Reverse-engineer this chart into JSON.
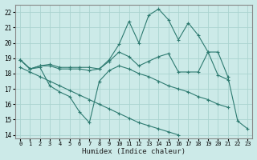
{
  "xlabel": "Humidex (Indice chaleur)",
  "background_color": "#cceae8",
  "grid_color": "#aad4d0",
  "line_color": "#2d7a70",
  "xlim": [
    -0.5,
    23.5
  ],
  "ylim": [
    13.8,
    22.5
  ],
  "yticks": [
    14,
    15,
    16,
    17,
    18,
    19,
    20,
    21,
    22
  ],
  "xticks": [
    0,
    1,
    2,
    3,
    4,
    5,
    6,
    7,
    8,
    9,
    10,
    11,
    12,
    13,
    14,
    15,
    16,
    17,
    18,
    19,
    20,
    21,
    22,
    23
  ],
  "lines": [
    {
      "x": [
        0,
        1,
        2,
        3,
        4,
        5,
        6,
        7,
        8,
        9,
        10,
        11,
        12,
        13,
        14,
        15,
        16,
        17,
        18,
        19,
        20,
        21
      ],
      "y": [
        18.9,
        18.3,
        18.5,
        18.5,
        18.3,
        18.3,
        18.3,
        18.2,
        18.3,
        18.8,
        19.4,
        19.1,
        18.5,
        18.8,
        19.1,
        19.3,
        18.1,
        18.1,
        18.1,
        19.4,
        17.9,
        17.6
      ],
      "style": "-",
      "marker": "+"
    },
    {
      "x": [
        0,
        1,
        2,
        3,
        4,
        5,
        6,
        7,
        8,
        9,
        10,
        11,
        12,
        13,
        14,
        15,
        16,
        17,
        18,
        19,
        20,
        21,
        22,
        23
      ],
      "y": [
        18.9,
        18.3,
        18.5,
        18.6,
        18.4,
        18.4,
        18.4,
        18.4,
        18.3,
        18.9,
        19.9,
        21.4,
        20.0,
        21.8,
        22.2,
        21.5,
        20.2,
        21.3,
        20.5,
        19.4,
        19.4,
        17.8,
        14.9,
        14.4
      ],
      "style": "-",
      "marker": "+"
    },
    {
      "x": [
        0,
        1,
        2,
        3,
        4,
        5,
        6,
        7,
        8,
        9,
        10,
        11,
        12,
        13,
        14,
        15,
        16,
        17,
        18,
        19,
        20,
        21
      ],
      "y": [
        18.9,
        18.3,
        18.4,
        17.2,
        16.8,
        16.5,
        15.5,
        14.8,
        17.5,
        18.2,
        18.5,
        18.3,
        18.0,
        17.8,
        17.5,
        17.2,
        17.0,
        16.8,
        16.5,
        16.3,
        16.0,
        15.8
      ],
      "style": "-",
      "marker": "+"
    },
    {
      "x": [
        0,
        1,
        2,
        3,
        4,
        5,
        6,
        7,
        8,
        9,
        10,
        11,
        12,
        13,
        14,
        15,
        16,
        17,
        18,
        19,
        20,
        21,
        22,
        23
      ],
      "y": [
        18.4,
        18.1,
        17.8,
        17.5,
        17.2,
        16.9,
        16.6,
        16.3,
        16.0,
        15.7,
        15.4,
        15.1,
        14.8,
        14.6,
        14.4,
        14.2,
        14.0,
        null,
        null,
        null,
        null,
        null,
        null,
        null
      ],
      "style": "-",
      "marker": "+"
    }
  ]
}
